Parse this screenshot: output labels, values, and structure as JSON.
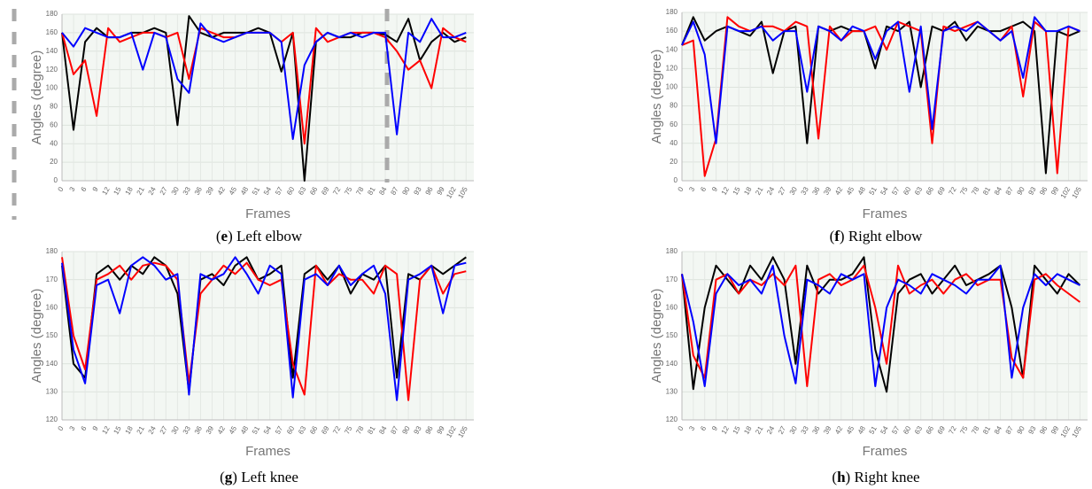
{
  "chart_data": [
    {
      "type": "line",
      "ylabel": "Angles (degree)",
      "xlabel": "Frames",
      "caption": {
        "open": "(",
        "letter": "e",
        "rest": ") Left elbow"
      },
      "x": [
        0,
        3,
        6,
        9,
        12,
        15,
        18,
        21,
        24,
        27,
        30,
        33,
        36,
        39,
        42,
        45,
        48,
        51,
        54,
        57,
        60,
        63,
        66,
        69,
        72,
        75,
        78,
        81,
        84,
        87,
        90,
        93,
        96,
        99,
        102,
        105
      ],
      "xlim": [
        0,
        107
      ],
      "xticks": [
        0,
        3,
        6,
        9,
        12,
        15,
        18,
        21,
        24,
        27,
        30,
        33,
        36,
        39,
        42,
        45,
        48,
        51,
        54,
        57,
        60,
        63,
        66,
        69,
        72,
        75,
        78,
        81,
        84,
        87,
        90,
        93,
        96,
        99,
        102,
        105
      ],
      "ylim": [
        0,
        180
      ],
      "yticks": [
        0,
        20,
        40,
        60,
        80,
        100,
        120,
        140,
        160,
        180
      ],
      "grid": true,
      "series": [
        {
          "color": "#000000",
          "values": [
            160,
            55,
            150,
            165,
            155,
            155,
            160,
            160,
            165,
            160,
            60,
            178,
            160,
            155,
            160,
            160,
            160,
            165,
            160,
            118,
            160,
            0,
            150,
            160,
            155,
            155,
            160,
            160,
            158,
            150,
            175,
            130,
            150,
            160,
            150,
            155
          ]
        },
        {
          "color": "#ff0000",
          "values": [
            160,
            115,
            130,
            70,
            165,
            150,
            155,
            160,
            160,
            155,
            160,
            110,
            165,
            160,
            155,
            155,
            160,
            160,
            160,
            150,
            160,
            40,
            165,
            150,
            155,
            160,
            160,
            160,
            155,
            140,
            120,
            130,
            100,
            165,
            155,
            150
          ]
        },
        {
          "color": "#0000ff",
          "values": [
            160,
            145,
            165,
            160,
            155,
            155,
            160,
            120,
            160,
            155,
            110,
            95,
            170,
            155,
            150,
            155,
            160,
            160,
            160,
            150,
            45,
            125,
            150,
            160,
            155,
            160,
            155,
            160,
            160,
            50,
            160,
            150,
            175,
            155,
            155,
            160
          ]
        }
      ]
    },
    {
      "type": "line",
      "ylabel": "Angles (degree)",
      "xlabel": "Frames",
      "caption": {
        "open": "(",
        "letter": "f",
        "rest": ") Right elbow"
      },
      "x": [
        0,
        3,
        6,
        9,
        12,
        15,
        18,
        21,
        24,
        27,
        30,
        33,
        36,
        39,
        42,
        45,
        48,
        51,
        54,
        57,
        60,
        63,
        66,
        69,
        72,
        75,
        78,
        81,
        84,
        87,
        90,
        93,
        96,
        99,
        102,
        105
      ],
      "xlim": [
        0,
        107
      ],
      "xticks": [
        0,
        3,
        6,
        9,
        12,
        15,
        18,
        21,
        24,
        27,
        30,
        33,
        36,
        39,
        42,
        45,
        48,
        51,
        54,
        57,
        60,
        63,
        66,
        69,
        72,
        75,
        78,
        81,
        84,
        87,
        90,
        93,
        96,
        99,
        102,
        105
      ],
      "ylim": [
        0,
        180
      ],
      "yticks": [
        0,
        20,
        40,
        60,
        80,
        100,
        120,
        140,
        160,
        180
      ],
      "grid": true,
      "series": [
        {
          "color": "#000000",
          "values": [
            145,
            175,
            150,
            160,
            165,
            160,
            155,
            170,
            115,
            160,
            165,
            40,
            165,
            160,
            165,
            160,
            160,
            120,
            165,
            160,
            170,
            100,
            165,
            160,
            170,
            150,
            165,
            160,
            160,
            165,
            170,
            160,
            8,
            160,
            155,
            160
          ]
        },
        {
          "color": "#ff0000",
          "values": [
            145,
            150,
            5,
            45,
            175,
            165,
            160,
            165,
            165,
            160,
            170,
            165,
            45,
            165,
            150,
            160,
            160,
            165,
            140,
            170,
            165,
            160,
            40,
            165,
            160,
            165,
            170,
            160,
            150,
            165,
            90,
            170,
            160,
            8,
            165,
            160
          ]
        },
        {
          "color": "#0000ff",
          "values": [
            145,
            170,
            135,
            40,
            165,
            160,
            160,
            165,
            150,
            160,
            160,
            95,
            165,
            160,
            150,
            165,
            160,
            130,
            160,
            170,
            95,
            165,
            55,
            160,
            165,
            160,
            170,
            160,
            150,
            160,
            110,
            175,
            160,
            160,
            165,
            160
          ]
        }
      ]
    },
    {
      "type": "line",
      "ylabel": "Angles (degree)",
      "xlabel": "Frames",
      "caption": {
        "open": "(",
        "letter": "g",
        "rest": ") Left knee"
      },
      "x": [
        0,
        3,
        6,
        9,
        12,
        15,
        18,
        21,
        24,
        27,
        30,
        33,
        36,
        39,
        42,
        45,
        48,
        51,
        54,
        57,
        60,
        63,
        66,
        69,
        72,
        75,
        78,
        81,
        84,
        87,
        90,
        93,
        96,
        99,
        102,
        105
      ],
      "xlim": [
        0,
        107
      ],
      "xticks": [
        0,
        3,
        6,
        9,
        12,
        15,
        18,
        21,
        24,
        27,
        30,
        33,
        36,
        39,
        42,
        45,
        48,
        51,
        54,
        57,
        60,
        63,
        66,
        69,
        72,
        75,
        78,
        81,
        84,
        87,
        90,
        93,
        96,
        99,
        102,
        105
      ],
      "ylim": [
        120,
        180
      ],
      "yticks": [
        120,
        130,
        140,
        150,
        160,
        170,
        180
      ],
      "grid": true,
      "series": [
        {
          "color": "#000000",
          "values": [
            175,
            140,
            135,
            172,
            175,
            170,
            175,
            172,
            178,
            175,
            165,
            130,
            170,
            172,
            168,
            175,
            178,
            170,
            172,
            175,
            135,
            172,
            175,
            170,
            175,
            165,
            172,
            170,
            175,
            135,
            172,
            170,
            175,
            172,
            175,
            178
          ]
        },
        {
          "color": "#ff0000",
          "values": [
            178,
            150,
            138,
            170,
            172,
            175,
            170,
            175,
            176,
            175,
            170,
            133,
            165,
            170,
            175,
            172,
            176,
            170,
            168,
            170,
            140,
            129,
            175,
            168,
            172,
            170,
            170,
            165,
            175,
            172,
            127,
            170,
            175,
            165,
            172,
            173
          ]
        },
        {
          "color": "#0000ff",
          "values": [
            176,
            145,
            133,
            168,
            170,
            158,
            175,
            178,
            175,
            170,
            172,
            129,
            172,
            170,
            172,
            178,
            172,
            165,
            175,
            172,
            128,
            170,
            172,
            168,
            175,
            168,
            172,
            175,
            165,
            127,
            170,
            172,
            175,
            158,
            175,
            176
          ]
        }
      ]
    },
    {
      "type": "line",
      "ylabel": "Angles (degree)",
      "xlabel": "Frames",
      "caption": {
        "open": "(",
        "letter": "h",
        "rest": ") Right knee"
      },
      "x": [
        0,
        3,
        6,
        9,
        12,
        15,
        18,
        21,
        24,
        27,
        30,
        33,
        36,
        39,
        42,
        45,
        48,
        51,
        54,
        57,
        60,
        63,
        66,
        69,
        72,
        75,
        78,
        81,
        84,
        87,
        90,
        93,
        96,
        99,
        102,
        105
      ],
      "xlim": [
        0,
        107
      ],
      "xticks": [
        0,
        3,
        6,
        9,
        12,
        15,
        18,
        21,
        24,
        27,
        30,
        33,
        36,
        39,
        42,
        45,
        48,
        51,
        54,
        57,
        60,
        63,
        66,
        69,
        72,
        75,
        78,
        81,
        84,
        87,
        90,
        93,
        96,
        99,
        102,
        105
      ],
      "ylim": [
        120,
        180
      ],
      "yticks": [
        120,
        130,
        140,
        150,
        160,
        170,
        180
      ],
      "grid": true,
      "series": [
        {
          "color": "#000000",
          "values": [
            172,
            131,
            160,
            175,
            170,
            165,
            175,
            170,
            178,
            170,
            140,
            175,
            165,
            170,
            170,
            172,
            178,
            145,
            130,
            165,
            170,
            172,
            165,
            170,
            175,
            168,
            170,
            172,
            175,
            160,
            135,
            175,
            170,
            165,
            172,
            168
          ]
        },
        {
          "color": "#ff0000",
          "values": [
            172,
            143,
            135,
            170,
            172,
            165,
            170,
            168,
            172,
            168,
            175,
            132,
            170,
            172,
            168,
            170,
            175,
            160,
            140,
            175,
            165,
            168,
            170,
            165,
            170,
            172,
            168,
            170,
            170,
            142,
            135,
            170,
            172,
            168,
            165,
            162
          ]
        },
        {
          "color": "#0000ff",
          "values": [
            172,
            155,
            132,
            165,
            172,
            168,
            170,
            165,
            175,
            150,
            133,
            170,
            168,
            165,
            172,
            170,
            172,
            132,
            160,
            170,
            168,
            165,
            172,
            170,
            168,
            165,
            170,
            170,
            175,
            135,
            160,
            172,
            168,
            172,
            170,
            168
          ]
        }
      ]
    }
  ]
}
